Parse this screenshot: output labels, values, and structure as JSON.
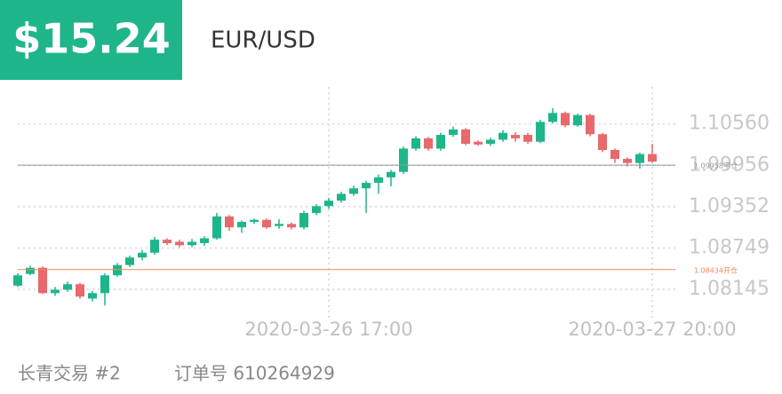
{
  "header": {
    "amount": "$15.24",
    "symbol": "EUR/USD"
  },
  "chart_data": {
    "type": "candlestick",
    "categories": [
      null,
      null,
      null,
      null,
      null,
      null,
      null,
      null,
      null,
      null,
      null,
      null,
      null,
      null,
      null,
      null,
      null,
      null,
      null,
      null,
      null,
      null,
      null,
      null,
      null,
      "2020-03-26 17:00",
      null,
      null,
      null,
      null,
      null,
      null,
      null,
      null,
      null,
      null,
      null,
      null,
      null,
      null,
      null,
      null,
      null,
      null,
      null,
      null,
      null,
      null,
      null,
      null,
      null,
      "2020-03-27 20:00"
    ],
    "open": [
      1.082,
      1.0837,
      1.0846,
      1.0809,
      1.0814,
      1.0822,
      1.0801,
      1.0809,
      1.0835,
      1.085,
      1.0861,
      1.0868,
      1.0887,
      1.0884,
      1.0879,
      1.0882,
      1.0889,
      1.0921,
      1.0905,
      1.0913,
      1.0916,
      1.0907,
      1.091,
      1.0905,
      1.0926,
      1.0936,
      1.0944,
      1.0954,
      1.0962,
      1.097,
      1.0978,
      1.0986,
      1.102,
      1.1035,
      1.102,
      1.104,
      1.1048,
      1.103,
      1.1027,
      1.1033,
      1.104,
      1.104,
      1.103,
      1.1059,
      1.1072,
      1.1054,
      1.1069,
      1.1041,
      1.1018,
      1.1005,
      1.0999,
      1.1012
    ],
    "high": [
      1.0838,
      1.0849,
      1.0848,
      1.0818,
      1.0826,
      1.0824,
      1.0812,
      1.0838,
      1.0853,
      1.0864,
      1.0872,
      1.0891,
      1.0889,
      1.0887,
      1.0888,
      1.0892,
      1.0926,
      1.0923,
      1.0915,
      1.0918,
      1.0918,
      1.0917,
      1.0912,
      1.0929,
      1.0939,
      1.0948,
      1.0957,
      1.0966,
      1.0973,
      1.0982,
      1.0989,
      1.1023,
      1.1038,
      1.1037,
      1.1043,
      1.1052,
      1.105,
      1.1032,
      1.1036,
      1.1047,
      1.1044,
      1.1043,
      1.1062,
      1.1079,
      1.1074,
      1.1071,
      1.1071,
      1.1043,
      1.102,
      1.1007,
      1.1014,
      1.1027
    ],
    "low": [
      1.0818,
      1.0835,
      1.0808,
      1.0805,
      1.0811,
      1.0801,
      1.0797,
      1.0791,
      1.0833,
      1.0847,
      1.0857,
      1.0865,
      1.0879,
      1.0876,
      1.0876,
      1.0878,
      1.0887,
      1.09,
      1.0897,
      1.091,
      1.0903,
      1.0903,
      1.0902,
      1.0902,
      1.0923,
      1.0932,
      1.0941,
      1.0951,
      1.0926,
      1.0954,
      1.0965,
      1.0983,
      1.1017,
      1.1017,
      1.1017,
      1.1037,
      1.1025,
      1.1024,
      1.1024,
      1.103,
      1.103,
      1.1027,
      1.1028,
      1.1057,
      1.1051,
      1.1052,
      1.1038,
      1.1015,
      1.0999,
      1.0994,
      1.0991,
      1.0999
    ],
    "close": [
      1.0835,
      1.0846,
      1.0809,
      1.0814,
      1.0822,
      1.0804,
      1.0809,
      1.0835,
      1.085,
      1.0861,
      1.0868,
      1.0887,
      1.0882,
      1.0879,
      1.0884,
      1.0889,
      1.0921,
      1.0905,
      1.0913,
      1.0916,
      1.0905,
      1.091,
      1.0905,
      1.0926,
      1.0936,
      1.0944,
      1.0954,
      1.0962,
      1.097,
      1.0978,
      1.0986,
      1.102,
      1.1035,
      1.102,
      1.104,
      1.1048,
      1.1027,
      1.1026,
      1.1033,
      1.1043,
      1.1035,
      1.103,
      1.1059,
      1.1072,
      1.1054,
      1.1069,
      1.1041,
      1.1018,
      1.1005,
      1.0999,
      1.1012,
      1.1001
    ],
    "up_color": "#1fb58a",
    "down_color": "#e8686b",
    "ylim": [
      1.0755,
      1.111
    ],
    "yticks": [
      {
        "value": 1.1056,
        "label": "1.10560"
      },
      1.09956,
      1.09352,
      1.08749,
      1.08145
    ],
    "grid": true,
    "reference_lines": [
      {
        "value": 1.09958,
        "label": "1.09958平仓",
        "color": "#999999"
      },
      {
        "value": 1.08434,
        "label": "1.08434开仓",
        "color": "#f08a5d"
      }
    ]
  },
  "footer": {
    "account": "长青交易 #2",
    "order": "订单号 610264929"
  }
}
